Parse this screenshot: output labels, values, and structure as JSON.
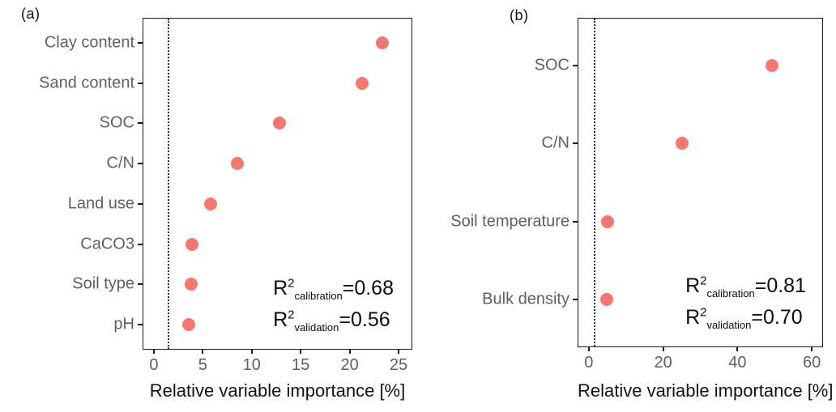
{
  "colors": {
    "point": "#F5776E",
    "category_label": "#606060",
    "axis_line": "#1a1a1a",
    "annotation_text": "#0d0d0d"
  },
  "chart_data": [
    {
      "type": "scatter",
      "variant": "horizontal-dot-plot",
      "panel_label": "(a)",
      "categories": [
        "Clay content",
        "Sand content",
        "SOC",
        "C/N",
        "Land use",
        "CaCO3",
        "Soil type",
        "pH"
      ],
      "values": [
        23.3,
        21.3,
        12.8,
        8.5,
        5.8,
        3.9,
        3.8,
        3.6
      ],
      "xlabel": "Relative variable importance [%]",
      "xticks": [
        0,
        5,
        10,
        15,
        20,
        25
      ],
      "xlim": [
        -1.07,
        26.32
      ],
      "reference_line_x": 1.5,
      "grid": false,
      "annotations": [
        {
          "base": "R",
          "sup": "2",
          "sub": "calibration",
          "rest": "=0.68"
        },
        {
          "base": "R",
          "sup": "2",
          "sub": "validation",
          "rest": "=0.56"
        }
      ]
    },
    {
      "type": "scatter",
      "variant": "horizontal-dot-plot",
      "panel_label": "(b)",
      "categories": [
        "SOC",
        "C/N",
        "Soil temperature",
        "Bulk density"
      ],
      "values": [
        49.3,
        25.1,
        5.0,
        4.8
      ],
      "xlabel": "Relative variable importance [%]",
      "xticks": [
        0,
        20,
        40,
        60
      ],
      "xlim": [
        -2.8,
        62.8
      ],
      "reference_line_x": 1.5,
      "grid": false,
      "annotations": [
        {
          "base": "R",
          "sup": "2",
          "sub": "calibration",
          "rest": "=0.81"
        },
        {
          "base": "R",
          "sup": "2",
          "sub": "validation",
          "rest": "=0.70"
        }
      ]
    }
  ]
}
